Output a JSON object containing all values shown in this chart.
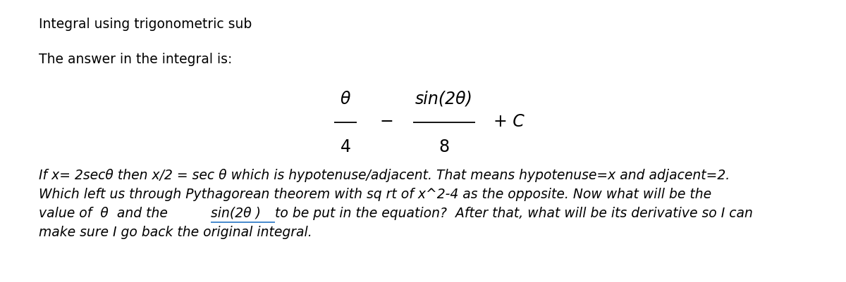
{
  "title": "Integral using trigonometric sub",
  "subtitle": "The answer in the integral is:",
  "formula_theta_num": "θ",
  "formula_theta_den": "4",
  "formula_minus": "−",
  "formula_sin_num": "sin(2θ)",
  "formula_sin_den": "8",
  "formula_plus_c": "+ C",
  "body_line1": "If x= 2secθ then x/2 = sec θ which is hypotenuse/adjacent. That means hypotenuse=x and adjacent=2.",
  "body_line2": "Which left us through Pythagorean theorem with sq rt of x^2-4 as the opposite. Now what will be the",
  "body_line3a": "value of  θ  and the ",
  "body_line3b": "sin(2θ )",
  "body_line3c": "to be put in the equation?  After that, what will be its derivative so I can",
  "body_line4": "make sure I go back the original integral.",
  "underline_color": "#4488CC",
  "bg_color": "#ffffff",
  "text_color": "#000000",
  "title_fontsize": 13.5,
  "body_fontsize": 13.5,
  "formula_fontsize": 17
}
